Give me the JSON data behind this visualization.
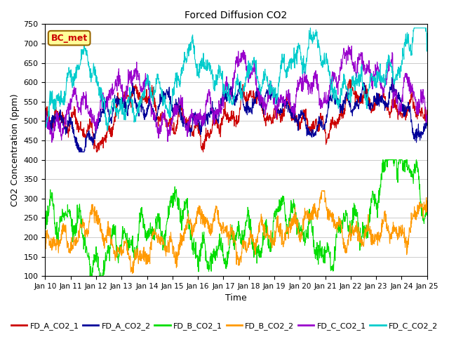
{
  "title": "Forced Diffusion CO2",
  "xlabel": "Time",
  "ylabel": "CO2 Concentration (ppm)",
  "ylim": [
    100,
    750
  ],
  "yticks": [
    100,
    150,
    200,
    250,
    300,
    350,
    400,
    450,
    500,
    550,
    600,
    650,
    700,
    750
  ],
  "xtick_labels": [
    "Jan 10",
    "Jan 11",
    "Jan 12",
    "Jan 13",
    "Jan 14",
    "Jan 15",
    "Jan 16",
    "Jan 17",
    "Jan 18",
    "Jan 19",
    "Jan 20",
    "Jan 21",
    "Jan 22",
    "Jan 23",
    "Jan 24",
    "Jan 25"
  ],
  "series_colors": {
    "FD_A_CO2_1": "#cc0000",
    "FD_A_CO2_2": "#000099",
    "FD_B_CO2_1": "#00dd00",
    "FD_B_CO2_2": "#ff9900",
    "FD_C_CO2_1": "#9900cc",
    "FD_C_CO2_2": "#00cccc"
  },
  "bc_met_label": "BC_met",
  "background_color": "#ffffff",
  "grid_color": "#cccccc"
}
